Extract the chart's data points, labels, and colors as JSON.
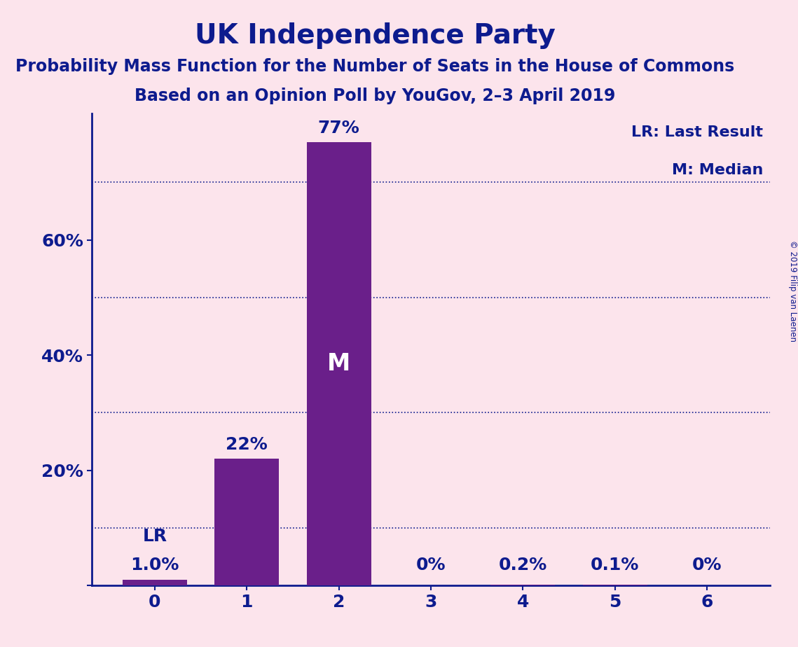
{
  "title": "UK Independence Party",
  "subtitle1": "Probability Mass Function for the Number of Seats in the House of Commons",
  "subtitle2": "Based on an Opinion Poll by YouGov, 2–3 April 2019",
  "copyright_text": "© 2019 Filip van Laenen",
  "categories": [
    0,
    1,
    2,
    3,
    4,
    5,
    6
  ],
  "values": [
    1.0,
    22.0,
    77.0,
    0.0,
    0.2,
    0.1,
    0.0
  ],
  "bar_labels": [
    "1.0%",
    "22%",
    "77%",
    "0%",
    "0.2%",
    "0.1%",
    "0%"
  ],
  "bar_color": "#6a1f8a",
  "background_color": "#fce4ec",
  "text_color": "#0d1b8e",
  "yticks": [
    0,
    20,
    40,
    60
  ],
  "ytick_labels": [
    "",
    "20%",
    "40%",
    "60%"
  ],
  "ylim": [
    0,
    82
  ],
  "dotted_lines": [
    10,
    30,
    50,
    70
  ],
  "legend_lr": "LR: Last Result",
  "legend_m": "M: Median",
  "lr_bar": 0,
  "median_bar": 2,
  "title_fontsize": 28,
  "subtitle_fontsize": 17,
  "bar_label_fontsize": 18,
  "axis_label_fontsize": 18,
  "legend_fontsize": 16
}
